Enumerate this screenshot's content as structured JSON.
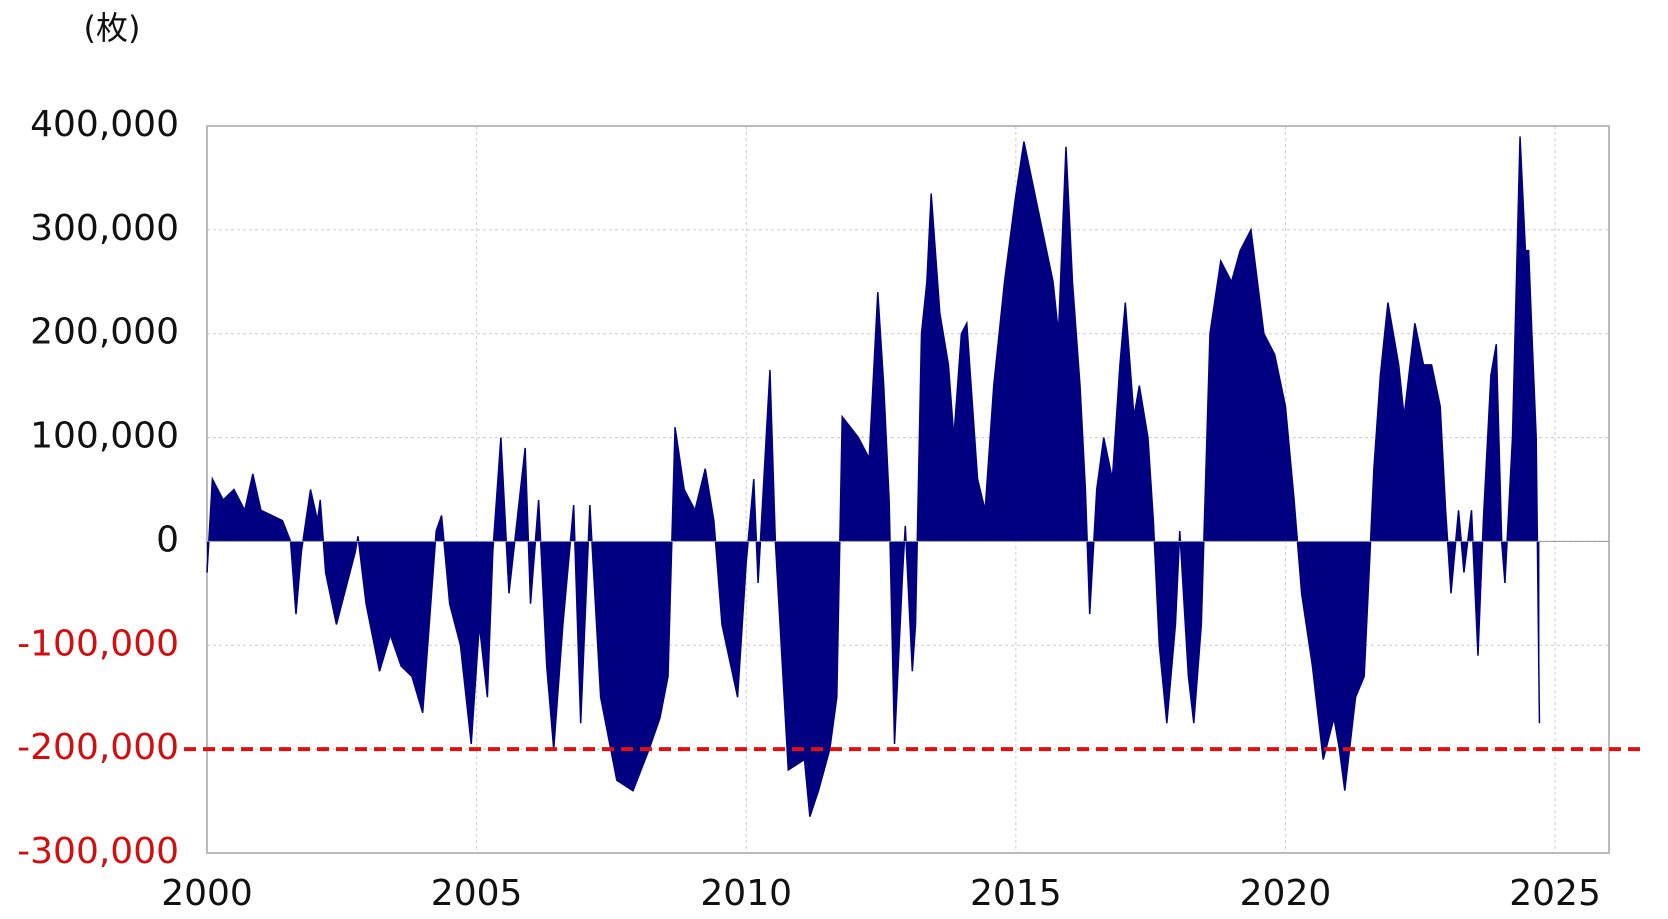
{
  "chart_data": {
    "type": "area",
    "y_label": "(枚)",
    "x": [
      2000.0,
      2000.1,
      2000.3,
      2000.5,
      2000.7,
      2000.85,
      2001.0,
      2001.2,
      2001.4,
      2001.55,
      2001.65,
      2001.75,
      2001.92,
      2002.05,
      2002.1,
      2002.2,
      2002.4,
      2002.6,
      2002.75,
      2002.8,
      2002.95,
      2003.2,
      2003.4,
      2003.6,
      2003.8,
      2004.0,
      2004.15,
      2004.25,
      2004.35,
      2004.5,
      2004.7,
      2004.9,
      2005.05,
      2005.2,
      2005.3,
      2005.45,
      2005.6,
      2005.75,
      2005.9,
      2006.0,
      2006.15,
      2006.3,
      2006.43,
      2006.6,
      2006.8,
      2006.93,
      2007.1,
      2007.3,
      2007.6,
      2007.9,
      2008.2,
      2008.4,
      2008.55,
      2008.68,
      2008.85,
      2009.05,
      2009.24,
      2009.4,
      2009.55,
      2009.84,
      2010.0,
      2010.14,
      2010.22,
      2010.44,
      2010.54,
      2010.78,
      2011.08,
      2011.18,
      2011.34,
      2011.55,
      2011.68,
      2011.78,
      2012.08,
      2012.28,
      2012.44,
      2012.55,
      2012.65,
      2012.75,
      2012.9,
      2012.95,
      2013.08,
      2013.14,
      2013.25,
      2013.35,
      2013.43,
      2013.59,
      2013.75,
      2013.85,
      2013.99,
      2014.09,
      2014.29,
      2014.43,
      2014.59,
      2014.79,
      2014.99,
      2015.15,
      2015.29,
      2015.49,
      2015.69,
      2015.79,
      2015.93,
      2016.05,
      2016.19,
      2016.29,
      2016.37,
      2016.5,
      2016.63,
      2016.79,
      2016.93,
      2017.03,
      2017.19,
      2017.29,
      2017.45,
      2017.55,
      2017.66,
      2017.8,
      2017.96,
      2018.04,
      2018.2,
      2018.3,
      2018.44,
      2018.6,
      2018.8,
      2019.0,
      2019.16,
      2019.36,
      2019.6,
      2019.8,
      2020.0,
      2020.16,
      2020.3,
      2020.5,
      2020.7,
      2020.9,
      2021.0,
      2021.1,
      2021.3,
      2021.46,
      2021.56,
      2021.64,
      2021.76,
      2021.9,
      2022.1,
      2022.2,
      2022.4,
      2022.56,
      2022.71,
      2022.87,
      2022.97,
      2023.07,
      2023.21,
      2023.31,
      2023.45,
      2023.57,
      2023.67,
      2023.81,
      2023.91,
      2024.01,
      2024.07,
      2024.21,
      2024.35,
      2024.45,
      2024.51,
      2024.57,
      2024.65,
      2024.71
    ],
    "series": [
      {
        "color": "#000080",
        "values": [
          -30000,
          60000,
          40000,
          50000,
          30000,
          65000,
          30000,
          25000,
          20000,
          0,
          -70000,
          -10000,
          50000,
          20000,
          40000,
          -30000,
          -80000,
          -40000,
          -10000,
          5000,
          -60000,
          -125000,
          -90000,
          -120000,
          -130000,
          -165000,
          -60000,
          10000,
          25000,
          -60000,
          -100000,
          -195000,
          -80000,
          -150000,
          -10000,
          100000,
          -50000,
          20000,
          90000,
          -60000,
          40000,
          -120000,
          -200000,
          -80000,
          35000,
          -175000,
          35000,
          -150000,
          -230000,
          -240000,
          -200000,
          -170000,
          -130000,
          110000,
          50000,
          30000,
          70000,
          20000,
          -80000,
          -150000,
          -20000,
          60000,
          -40000,
          165000,
          0,
          -220000,
          -210000,
          -265000,
          -240000,
          -200000,
          -150000,
          120000,
          100000,
          80000,
          240000,
          150000,
          40000,
          -195000,
          -30000,
          15000,
          -125000,
          -80000,
          200000,
          250000,
          335000,
          220000,
          170000,
          100000,
          200000,
          210000,
          60000,
          30000,
          150000,
          250000,
          330000,
          385000,
          350000,
          300000,
          250000,
          200000,
          380000,
          250000,
          150000,
          50000,
          -70000,
          50000,
          100000,
          60000,
          170000,
          230000,
          120000,
          150000,
          100000,
          20000,
          -100000,
          -175000,
          -80000,
          10000,
          -130000,
          -175000,
          -80000,
          200000,
          270000,
          250000,
          280000,
          300000,
          200000,
          180000,
          130000,
          40000,
          -50000,
          -120000,
          -210000,
          -170000,
          -200000,
          -240000,
          -150000,
          -130000,
          -20000,
          70000,
          160000,
          230000,
          170000,
          120000,
          210000,
          170000,
          170000,
          130000,
          30000,
          -50000,
          30000,
          -30000,
          30000,
          -110000,
          20000,
          160000,
          190000,
          0,
          -40000,
          100000,
          390000,
          280000,
          280000,
          200000,
          100000,
          -175000
        ]
      }
    ],
    "xlim": [
      2000,
      2026
    ],
    "xticks": [
      2000,
      2005,
      2010,
      2015,
      2020,
      2025
    ],
    "ylim": [
      -300000,
      400000
    ],
    "yticks": [
      {
        "value": -300000,
        "label": "-300,000"
      },
      {
        "value": -200000,
        "label": "-200,000"
      },
      {
        "value": -100000,
        "label": "-100,000"
      },
      0,
      {
        "value": 100000,
        "label": "100,000"
      },
      {
        "value": 200000,
        "label": "200,000"
      },
      {
        "value": 300000,
        "label": "300,000"
      },
      {
        "value": 400000,
        "label": "400,000"
      }
    ],
    "negative_tick_color": "#d01010",
    "grid": true,
    "reference_line": {
      "value": -200000,
      "color": "#e01010"
    }
  }
}
